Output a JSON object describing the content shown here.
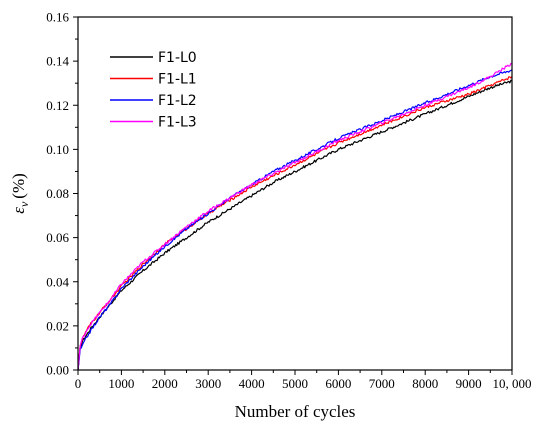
{
  "chart_data": {
    "type": "line",
    "title": "",
    "xlabel": "Number of cycles",
    "ylabel_symbol": "ε",
    "ylabel_subscript": "v",
    "ylabel_unit": "(%)",
    "xlim": [
      0,
      10000
    ],
    "ylim": [
      0,
      0.16
    ],
    "grid": false,
    "legend_position": "top-left",
    "x_ticks": [
      0,
      1000,
      2000,
      3000,
      4000,
      5000,
      6000,
      7000,
      8000,
      9000,
      10000
    ],
    "x_tick_labels": [
      "0",
      "1000",
      "2000",
      "3000",
      "4000",
      "5000",
      "6000",
      "7000",
      "8000",
      "9000",
      "10, 000"
    ],
    "y_ticks": [
      0,
      0.02,
      0.04,
      0.06,
      0.08,
      0.1,
      0.12,
      0.14,
      0.16
    ],
    "y_tick_labels": [
      "0.00",
      "0.02",
      "0.04",
      "0.06",
      "0.08",
      "0.10",
      "0.12",
      "0.14",
      "0.16"
    ],
    "x": [
      0,
      50,
      100,
      200,
      300,
      500,
      750,
      1000,
      1500,
      2000,
      2500,
      3000,
      3500,
      4000,
      4500,
      5000,
      5500,
      6000,
      6500,
      7000,
      7500,
      8000,
      8500,
      9000,
      9500,
      10000
    ],
    "series": [
      {
        "name": "F1-L0",
        "color": "#000000",
        "values": [
          0,
          0.01,
          0.013,
          0.016,
          0.019,
          0.024,
          0.03,
          0.036,
          0.045,
          0.053,
          0.06,
          0.067,
          0.073,
          0.079,
          0.085,
          0.09,
          0.095,
          0.1,
          0.104,
          0.108,
          0.112,
          0.116,
          0.12,
          0.124,
          0.128,
          0.131
        ]
      },
      {
        "name": "F1-L1",
        "color": "#ff0000",
        "values": [
          0,
          0.011,
          0.014,
          0.018,
          0.021,
          0.026,
          0.032,
          0.038,
          0.048,
          0.057,
          0.064,
          0.071,
          0.077,
          0.083,
          0.088,
          0.093,
          0.098,
          0.103,
          0.107,
          0.111,
          0.115,
          0.119,
          0.122,
          0.125,
          0.129,
          0.133
        ]
      },
      {
        "name": "F1-L2",
        "color": "#0000ff",
        "values": [
          0,
          0.009,
          0.011,
          0.015,
          0.018,
          0.024,
          0.03,
          0.037,
          0.047,
          0.056,
          0.064,
          0.071,
          0.078,
          0.084,
          0.09,
          0.095,
          0.1,
          0.105,
          0.109,
          0.113,
          0.117,
          0.121,
          0.125,
          0.129,
          0.133,
          0.136
        ]
      },
      {
        "name": "F1-L3",
        "color": "#ff00ff",
        "values": [
          0,
          0.011,
          0.014,
          0.018,
          0.021,
          0.026,
          0.032,
          0.039,
          0.049,
          0.057,
          0.065,
          0.072,
          0.078,
          0.084,
          0.089,
          0.094,
          0.099,
          0.104,
          0.108,
          0.112,
          0.116,
          0.12,
          0.124,
          0.128,
          0.133,
          0.139
        ]
      }
    ]
  }
}
